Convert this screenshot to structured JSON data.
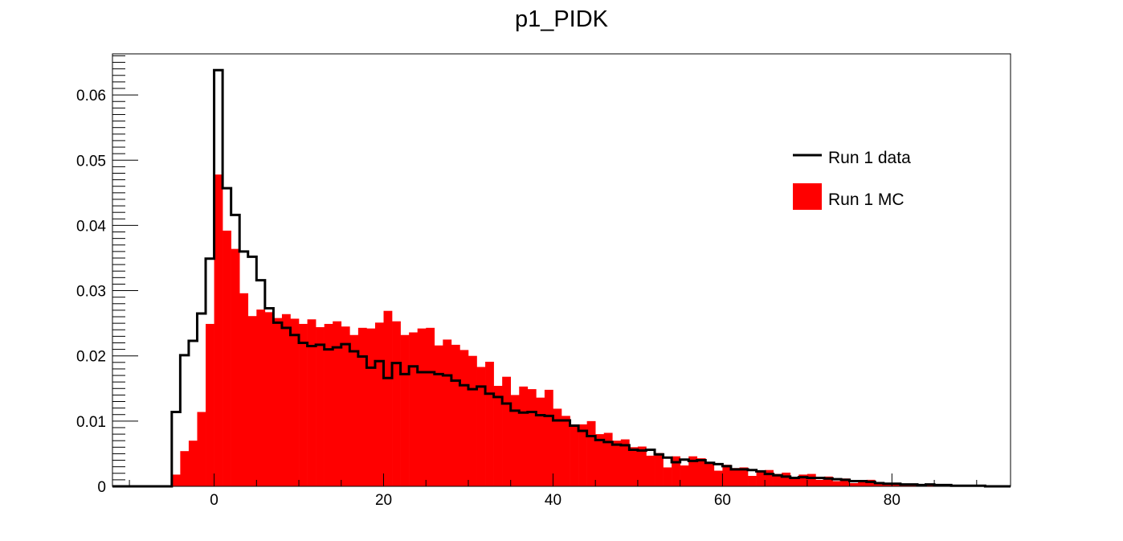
{
  "chart_data": {
    "type": "histogram",
    "title": "p1_PIDK",
    "xlabel": "",
    "ylabel": "",
    "xlim": [
      -12.0,
      94.0
    ],
    "ylim": [
      0,
      0.0663
    ],
    "x_ticks": [
      0,
      20,
      40,
      60,
      80
    ],
    "x_tick_labels": [
      "0",
      "20",
      "40",
      "60",
      "80"
    ],
    "y_ticks": [
      0,
      0.01,
      0.02,
      0.03,
      0.04,
      0.05,
      0.06
    ],
    "y_tick_labels": [
      "0",
      "0.01",
      "0.02",
      "0.03",
      "0.04",
      "0.05",
      "0.06"
    ],
    "grid": false,
    "legend_position": "top-right",
    "bin_edges_start": -12.0,
    "bin_width": 1.0,
    "series": [
      {
        "name": "Run 1 MC",
        "style": "filled",
        "color": "#ff0000",
        "values": [
          0,
          0,
          0,
          0,
          0,
          0,
          0,
          0.0018,
          0.0054,
          0.007,
          0.0114,
          0.0249,
          0.0478,
          0.0392,
          0.0364,
          0.0296,
          0.0261,
          0.0271,
          0.0267,
          0.0258,
          0.0264,
          0.0257,
          0.0249,
          0.0256,
          0.0244,
          0.0249,
          0.0253,
          0.0245,
          0.0232,
          0.0243,
          0.0242,
          0.0251,
          0.0269,
          0.0253,
          0.0232,
          0.0236,
          0.0242,
          0.0243,
          0.0216,
          0.0225,
          0.0217,
          0.0209,
          0.02,
          0.0183,
          0.0191,
          0.0154,
          0.0168,
          0.014,
          0.0153,
          0.0149,
          0.0136,
          0.0148,
          0.0119,
          0.0108,
          0.0095,
          0.0095,
          0.01,
          0.008,
          0.0082,
          0.007,
          0.0072,
          0.006,
          0.0061,
          0.0047,
          0.0051,
          0.0029,
          0.0046,
          0.0032,
          0.0046,
          0.0043,
          0.0037,
          0.0024,
          0.0033,
          0.0028,
          0.0029,
          0.0016,
          0.0024,
          0.0025,
          0.0019,
          0.0021,
          0.0012,
          0.0018,
          0.0019,
          0.001,
          0.0015,
          0.0008,
          0.0012,
          0.0005,
          0.0007,
          0.001,
          0.0004,
          0.0005,
          0.0004,
          0.0003,
          0.0003,
          0.0002,
          0.0002,
          0.0002,
          0.0001,
          0.0002,
          0.0001,
          0.0002,
          0.0001,
          0.0001,
          0,
          0.0001
        ]
      },
      {
        "name": "Run 1 data",
        "style": "step",
        "color": "#000000",
        "values": [
          0,
          0,
          0,
          0,
          0,
          0,
          0,
          0.0114,
          0.0201,
          0.0223,
          0.0265,
          0.0349,
          0.0638,
          0.0457,
          0.0416,
          0.036,
          0.0352,
          0.0316,
          0.0273,
          0.0251,
          0.0243,
          0.0232,
          0.022,
          0.0215,
          0.0217,
          0.021,
          0.0213,
          0.0218,
          0.0207,
          0.0199,
          0.0182,
          0.0192,
          0.0166,
          0.0189,
          0.0172,
          0.0184,
          0.0175,
          0.0175,
          0.0172,
          0.017,
          0.0162,
          0.0155,
          0.0149,
          0.0153,
          0.0142,
          0.0137,
          0.0127,
          0.0116,
          0.0113,
          0.0114,
          0.0109,
          0.0108,
          0.0101,
          0.0101,
          0.0093,
          0.0085,
          0.0077,
          0.0071,
          0.0068,
          0.0064,
          0.0063,
          0.0056,
          0.0055,
          0.0056,
          0.0049,
          0.0044,
          0.0037,
          0.0041,
          0.0039,
          0.004,
          0.0036,
          0.0034,
          0.0031,
          0.0026,
          0.0026,
          0.0025,
          0.0023,
          0.0019,
          0.0017,
          0.0015,
          0.0013,
          0.0014,
          0.0013,
          0.0013,
          0.0012,
          0.0011,
          0.001,
          0.0008,
          0.0008,
          0.0007,
          0.0005,
          0.0004,
          0.0004,
          0.0003,
          0.0003,
          0.0002,
          0.0003,
          0.0002,
          0.0002,
          0.0001,
          0.0001,
          0.0001,
          0.0001,
          0,
          0,
          0
        ]
      }
    ]
  }
}
